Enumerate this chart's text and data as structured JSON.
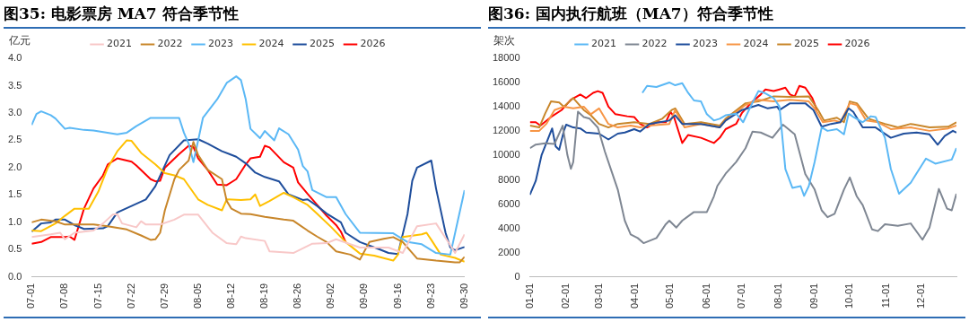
{
  "chart_data": [
    {
      "type": "line",
      "title": "图35: 电影票房 MA7 符合季节性",
      "ylabel": "亿元",
      "legend": "top",
      "xlim": [
        "--07-01",
        "--09-30"
      ],
      "xticks": [
        {
          "value": "--07-01",
          "label": "07-01"
        },
        {
          "value": "--07-08",
          "label": "07-08"
        },
        {
          "value": "--07-15",
          "label": "07-15"
        },
        {
          "value": "--07-22",
          "label": "07-22"
        },
        {
          "value": "--07-29",
          "label": "07-29"
        },
        {
          "value": "--08-05",
          "label": "08-05"
        },
        {
          "value": "--08-12",
          "label": "08-12"
        },
        {
          "value": "--08-19",
          "label": "08-19"
        },
        {
          "value": "--08-26",
          "label": "08-26"
        },
        {
          "value": "--09-02",
          "label": "09-02"
        },
        {
          "value": "--09-09",
          "label": "09-09"
        },
        {
          "value": "--09-16",
          "label": "09-16"
        },
        {
          "value": "--09-23",
          "label": "09-23"
        },
        {
          "value": "--09-30",
          "label": "09-30"
        }
      ],
      "ylim": [
        0,
        4
      ],
      "yticks": [
        {
          "value": 0,
          "label": "0.0"
        },
        0.5,
        {
          "value": 1,
          "label": "1.0"
        },
        1.5,
        {
          "value": 2,
          "label": "2.0"
        },
        2.5,
        {
          "value": 3,
          "label": "3.0"
        },
        3.5,
        {
          "value": 4,
          "label": "4.0"
        }
      ],
      "series": [
        {
          "name": "2021",
          "color": "#f8c8c8",
          "x": [
            "--07-01",
            "--07-05",
            "--07-07",
            "--07-08",
            "--07-10",
            "--07-12",
            "--07-14",
            "--07-16",
            "--07-18",
            "--07-19",
            "--07-20",
            "--07-23",
            "--07-24",
            "--07-25",
            "--07-28",
            "--07-31",
            "--08-02",
            "--08-05",
            "--08-08",
            "--08-11",
            "--08-13",
            "--08-14",
            "--08-15",
            "--08-19",
            "--08-20",
            "--08-25",
            "--08-29",
            "--09-01",
            "--09-03",
            "--09-08",
            "--09-14",
            "--09-17",
            "--09-20",
            "--09-24",
            "--09-27",
            "--09-28",
            "--09-30"
          ],
          "values": [
            0.73,
            0.78,
            0.81,
            0.69,
            0.81,
            0.83,
            0.85,
            0.98,
            1.14,
            1.15,
            0.98,
            0.91,
            1.02,
            0.96,
            0.96,
            1.05,
            1.14,
            1.14,
            0.81,
            0.62,
            0.6,
            0.74,
            0.71,
            0.66,
            0.47,
            0.44,
            0.61,
            0.62,
            0.69,
            0.54,
            0.54,
            0.44,
            0.93,
            0.98,
            0.58,
            0.44,
            0.78
          ]
        },
        {
          "name": "2022",
          "color": "#c8862a",
          "x": [
            "--07-01",
            "--07-03",
            "--07-06",
            "--07-08",
            "--07-11",
            "--07-14",
            "--07-17",
            "--07-21",
            "--07-24",
            "--07-26",
            "--07-27",
            "--07-28",
            "--07-29",
            "--07-31",
            "--08-01",
            "--08-03",
            "--08-04",
            "--08-05",
            "--08-07",
            "--08-10",
            "--08-11",
            "--08-12",
            "--08-14",
            "--08-16",
            "--08-19",
            "--08-23",
            "--08-25",
            "--08-28",
            "--08-30",
            "--09-01",
            "--09-03",
            "--09-06",
            "--09-08",
            "--09-10",
            "--09-13",
            "--09-15",
            "--09-17",
            "--09-20",
            "--09-24",
            "--09-28",
            "--09-29",
            "--09-30"
          ],
          "values": [
            1.0,
            1.05,
            1.02,
            0.96,
            0.96,
            0.96,
            0.93,
            0.87,
            0.76,
            0.68,
            0.69,
            0.81,
            1.22,
            1.79,
            1.96,
            2.13,
            2.47,
            2.23,
            1.96,
            1.79,
            1.39,
            1.25,
            1.16,
            1.15,
            1.1,
            1.05,
            1.03,
            0.85,
            0.74,
            0.64,
            0.47,
            0.41,
            0.32,
            0.64,
            0.7,
            0.73,
            0.64,
            0.34,
            0.3,
            0.27,
            0.27,
            0.37
          ]
        },
        {
          "name": "2023",
          "color": "#5bb8f5",
          "x": [
            "--07-01",
            "--07-02",
            "--07-03",
            "--07-05",
            "--07-06",
            "--07-08",
            "--07-09",
            "--07-12",
            "--07-14",
            "--07-19",
            "--07-21",
            "--07-23",
            "--07-26",
            "--07-29",
            "--08-01",
            "--08-02",
            "--08-03",
            "--08-04",
            "--08-05",
            "--08-06",
            "--08-09",
            "--08-11",
            "--08-13",
            "--08-14",
            "--08-15",
            "--08-16",
            "--08-18",
            "--08-19",
            "--08-21",
            "--08-22",
            "--08-24",
            "--08-26",
            "--08-27",
            "--08-28",
            "--08-29",
            "--09-01",
            "--09-03",
            "--09-05",
            "--09-08",
            "--09-15",
            "--09-18",
            "--09-21",
            "--09-24",
            "--09-27",
            "--09-30"
          ],
          "values": [
            2.78,
            2.98,
            3.03,
            2.96,
            2.9,
            2.71,
            2.73,
            2.69,
            2.68,
            2.61,
            2.64,
            2.76,
            2.91,
            2.91,
            2.91,
            2.64,
            2.44,
            2.1,
            2.5,
            2.91,
            3.25,
            3.55,
            3.67,
            3.6,
            3.25,
            2.71,
            2.54,
            2.67,
            2.5,
            2.72,
            2.61,
            2.33,
            2.03,
            1.93,
            1.59,
            1.46,
            1.46,
            1.15,
            0.81,
            0.8,
            0.64,
            0.6,
            0.44,
            0.41,
            1.59
          ]
        },
        {
          "name": "2024",
          "color": "#ffc000",
          "x": [
            "--07-01",
            "--07-03",
            "--07-06",
            "--07-08",
            "--07-10",
            "--07-13",
            "--07-15",
            "--07-17",
            "--07-19",
            "--07-21",
            "--07-22",
            "--07-24",
            "--07-27",
            "--07-29",
            "--07-31",
            "--08-02",
            "--08-05",
            "--08-07",
            "--08-10",
            "--08-11",
            "--08-14",
            "--08-16",
            "--08-17",
            "--08-18",
            "--08-20",
            "--08-23",
            "--08-25",
            "--08-28",
            "--08-30",
            "--09-02",
            "--09-05",
            "--09-08",
            "--09-11",
            "--09-15",
            "--09-16",
            "--09-17",
            "--09-21",
            "--09-22",
            "--09-23",
            "--09-25",
            "--09-28",
            "--09-30"
          ],
          "values": [
            0.85,
            0.84,
            0.98,
            1.12,
            1.25,
            1.25,
            1.56,
            2.0,
            2.3,
            2.5,
            2.49,
            2.27,
            2.06,
            1.9,
            1.86,
            1.79,
            1.42,
            1.32,
            1.22,
            1.42,
            1.41,
            1.42,
            1.51,
            1.3,
            1.39,
            1.54,
            1.46,
            1.32,
            1.16,
            0.91,
            0.64,
            0.43,
            0.39,
            0.3,
            0.41,
            0.73,
            0.78,
            0.81,
            0.68,
            0.41,
            0.35,
            0.28
          ]
        },
        {
          "name": "2025",
          "color": "#1f4e9c",
          "x": [
            "--07-01",
            "--07-03",
            "--07-05",
            "--07-06",
            "--07-08",
            "--07-10",
            "--07-12",
            "--07-16",
            "--07-17",
            "--07-19",
            "--07-22",
            "--07-25",
            "--07-27",
            "--07-30",
            "--08-02",
            "--08-05",
            "--08-07",
            "--08-10",
            "--08-13",
            "--08-15",
            "--08-17",
            "--08-19",
            "--08-22",
            "--08-24",
            "--08-27",
            "--08-28",
            "--08-30",
            "--09-01",
            "--09-04",
            "--09-05",
            "--09-08",
            "--09-12",
            "--09-14",
            "--09-16",
            "--09-18",
            "--09-19",
            "--09-20",
            "--09-23",
            "--09-24",
            "--09-26",
            "--09-27",
            "--09-28",
            "--09-30"
          ],
          "values": [
            0.83,
            0.98,
            1.0,
            1.05,
            1.05,
            0.95,
            0.88,
            0.89,
            0.93,
            1.18,
            1.3,
            1.42,
            1.66,
            2.23,
            2.5,
            2.52,
            2.44,
            2.3,
            2.2,
            2.08,
            1.91,
            1.83,
            1.75,
            1.51,
            1.41,
            1.42,
            1.3,
            1.16,
            1.0,
            0.81,
            0.64,
            0.51,
            0.44,
            0.42,
            1.15,
            1.76,
            2.0,
            2.13,
            1.62,
            0.81,
            0.54,
            0.49,
            0.55
          ]
        },
        {
          "name": "2026",
          "color": "#ff0000",
          "x": [
            "--07-01",
            "--07-03",
            "--07-05",
            "--07-08",
            "--07-09",
            "--07-10",
            "--07-12",
            "--07-14",
            "--07-16",
            "--07-17",
            "--07-19",
            "--07-22",
            "--07-23",
            "--07-26",
            "--07-27",
            "--07-28",
            "--07-29",
            "--08-01",
            "--08-03",
            "--08-04",
            "--08-05",
            "--08-07",
            "--08-09",
            "--08-11",
            "--08-13",
            "--08-15",
            "--08-16",
            "--08-18",
            "--08-19",
            "--08-20",
            "--08-23",
            "--08-25",
            "--08-26",
            "--08-28",
            "--08-30",
            "--09-01",
            "--09-03",
            "--09-04",
            "--09-05"
          ],
          "values": [
            0.61,
            0.64,
            0.73,
            0.73,
            0.74,
            0.68,
            1.25,
            1.62,
            1.86,
            2.06,
            2.17,
            2.11,
            2.04,
            1.79,
            1.75,
            1.76,
            2.0,
            2.25,
            2.4,
            2.38,
            2.17,
            1.96,
            1.69,
            1.68,
            1.79,
            2.06,
            2.17,
            2.2,
            2.4,
            2.37,
            2.1,
            2.0,
            1.73,
            1.52,
            1.32,
            1.12,
            0.95,
            0.83,
            0.64
          ]
        }
      ]
    },
    {
      "type": "line",
      "title": "图36: 国内执行航班（MA7）符合季节性",
      "ylabel": "架次",
      "legend": "top",
      "xlim": [
        "--01-01",
        "--12-31"
      ],
      "xticks": [
        {
          "value": "--01-01",
          "label": "01-01"
        },
        {
          "value": "--02-01",
          "label": "02-01"
        },
        {
          "value": "--03-01",
          "label": "03-01"
        },
        {
          "value": "--04-01",
          "label": "04-01"
        },
        {
          "value": "--05-01",
          "label": "05-01"
        },
        {
          "value": "--06-01",
          "label": "06-01"
        },
        {
          "value": "--07-01",
          "label": "07-01"
        },
        {
          "value": "--08-01",
          "label": "08-01"
        },
        {
          "value": "--09-01",
          "label": "09-01"
        },
        {
          "value": "--10-01",
          "label": "10-01"
        },
        {
          "value": "--11-01",
          "label": "11-01"
        },
        {
          "value": "--12-01",
          "label": "12-01"
        }
      ],
      "ylim": [
        0,
        18000
      ],
      "yticks": [
        0,
        2000,
        4000,
        6000,
        8000,
        10000,
        12000,
        14000,
        16000,
        18000
      ],
      "series": [
        {
          "name": "2021",
          "color": "#5bb8f5",
          "x": [
            "--04-07",
            "--04-11",
            "--04-19",
            "--04-30",
            "--05-05",
            "--05-11",
            "--05-16",
            "--05-21",
            "--05-27",
            "--06-01",
            "--06-07",
            "--06-12",
            "--06-17",
            "--06-26",
            "--07-02",
            "--07-09",
            "--07-15",
            "--07-20",
            "--07-28",
            "--08-02",
            "--08-07",
            "--08-13",
            "--08-20",
            "--08-23",
            "--08-27",
            "--09-01",
            "--09-07",
            "--09-12",
            "--09-20",
            "--09-26",
            "--09-30",
            "--10-04",
            "--10-12",
            "--10-19",
            "--10-23",
            "--10-31",
            "--11-05",
            "--11-12",
            "--11-22",
            "--12-05",
            "--12-13",
            "--12-27",
            "--12-31"
          ],
          "values": [
            15160,
            15730,
            15640,
            16010,
            15780,
            15950,
            15160,
            14530,
            14450,
            13400,
            12880,
            13030,
            13310,
            13450,
            12740,
            14160,
            15300,
            15160,
            14730,
            14020,
            8900,
            7340,
            7480,
            6680,
            7480,
            9470,
            12310,
            12030,
            12170,
            11740,
            13450,
            13170,
            12740,
            13230,
            13170,
            11460,
            8900,
            6850,
            7760,
            9750,
            9330,
            9670,
            10610
          ]
        },
        {
          "name": "2022",
          "color": "#7f8793",
          "x": [
            "--01-01",
            "--01-06",
            "--01-14",
            "--01-22",
            "--01-29",
            "--02-02",
            "--02-05",
            "--02-07",
            "--02-11",
            "--02-16",
            "--02-21",
            "--02-28",
            "--03-06",
            "--03-12",
            "--03-17",
            "--03-23",
            "--03-28",
            "--04-03",
            "--04-08",
            "--04-19",
            "--04-27",
            "--04-30",
            "--05-06",
            "--05-11",
            "--05-21",
            "--06-01",
            "--06-07",
            "--06-10",
            "--06-17",
            "--06-26",
            "--07-04",
            "--07-10",
            "--07-17",
            "--07-27",
            "--08-05",
            "--08-15",
            "--08-24",
            "--09-01",
            "--09-07",
            "--09-12",
            "--09-18",
            "--09-26",
            "--10-01",
            "--10-07",
            "--10-12",
            "--10-20",
            "--10-25",
            "--10-31",
            "--11-11",
            "--11-22",
            "--12-02",
            "--12-08",
            "--12-16",
            "--12-23",
            "--12-27",
            "--12-31"
          ],
          "values": [
            10600,
            10900,
            11000,
            10950,
            12460,
            10040,
            8900,
            9470,
            13600,
            13170,
            13030,
            12300,
            10320,
            8620,
            7200,
            4640,
            3500,
            3210,
            2790,
            3210,
            4350,
            4640,
            4070,
            4640,
            5350,
            5350,
            6630,
            7500,
            8500,
            9470,
            10600,
            11970,
            11890,
            11460,
            12540,
            11740,
            8480,
            7200,
            5490,
            4920,
            5200,
            7200,
            8190,
            6630,
            5920,
            3920,
            3780,
            4350,
            4210,
            4410,
            3070,
            4070,
            7250,
            5630,
            5490,
            6850
          ]
        },
        {
          "name": "2023",
          "color": "#1f4e9c",
          "x": [
            "--01-01",
            "--01-06",
            "--01-11",
            "--01-20",
            "--01-23",
            "--01-26",
            "--01-30",
            "--02-01",
            "--02-07",
            "--02-13",
            "--02-18",
            "--03-01",
            "--03-09",
            "--03-17",
            "--03-23",
            "--03-31",
            "--04-05",
            "--04-13",
            "--04-30",
            "--05-05",
            "--05-11",
            "--05-27",
            "--06-12",
            "--06-17",
            "--07-01",
            "--07-15",
            "--07-23",
            "--07-31",
            "--08-02",
            "--08-11",
            "--08-24",
            "--08-31",
            "--09-07",
            "--09-15",
            "--09-23",
            "--09-30",
            "--10-04",
            "--10-12",
            "--10-23",
            "--11-05",
            "--11-16",
            "--11-27",
            "--12-08",
            "--12-15",
            "--12-21",
            "--12-28",
            "--12-31"
          ],
          "values": [
            6770,
            7910,
            10040,
            12230,
            10750,
            10470,
            12030,
            12540,
            12310,
            12230,
            11890,
            11800,
            11320,
            11800,
            11890,
            12170,
            11970,
            12600,
            12880,
            13310,
            12600,
            12600,
            12310,
            12880,
            13740,
            14160,
            13880,
            14020,
            13740,
            14300,
            14300,
            13740,
            12370,
            12600,
            12740,
            13880,
            13590,
            12310,
            12310,
            11460,
            11800,
            11890,
            11740,
            10890,
            11600,
            12030,
            11890
          ]
        },
        {
          "name": "2024",
          "color": "#f79646",
          "x": [
            "--01-01",
            "--01-09",
            "--01-15",
            "--01-22",
            "--01-30",
            "--02-07",
            "--02-16",
            "--02-22",
            "--03-01",
            "--03-09",
            "--03-17",
            "--03-28",
            "--04-05",
            "--04-13",
            "--04-30",
            "--05-05",
            "--05-13",
            "--05-27",
            "--06-12",
            "--06-17",
            "--07-04",
            "--07-15",
            "--07-28",
            "--08-11",
            "--08-27",
            "--09-01",
            "--09-08",
            "--09-18",
            "--09-23",
            "--10-01",
            "--10-07",
            "--10-15",
            "--10-25",
            "--11-05",
            "--11-22",
            "--12-08",
            "--12-24",
            "--12-31"
          ],
          "values": [
            12030,
            12030,
            12600,
            13740,
            14020,
            13880,
            14020,
            13400,
            13880,
            12600,
            12310,
            12460,
            12310,
            12460,
            12600,
            13740,
            12310,
            12600,
            12310,
            12880,
            14160,
            14590,
            14450,
            14590,
            14450,
            13880,
            12740,
            12880,
            12740,
            14300,
            14160,
            12880,
            12740,
            12170,
            12310,
            12030,
            12230,
            12460
          ]
        },
        {
          "name": "2025",
          "color": "#c8862a",
          "x": [
            "--01-01",
            "--01-09",
            "--01-14",
            "--01-19",
            "--01-26",
            "--01-30",
            "--02-07",
            "--02-16",
            "--02-22",
            "--03-01",
            "--03-09",
            "--03-17",
            "--03-31",
            "--04-13",
            "--04-24",
            "--05-02",
            "--05-05",
            "--05-13",
            "--05-27",
            "--06-12",
            "--06-17",
            "--07-04",
            "--07-15",
            "--07-28",
            "--08-11",
            "--08-27",
            "--09-04",
            "--09-09",
            "--09-20",
            "--09-26",
            "--10-01",
            "--10-07",
            "--10-17",
            "--10-31",
            "--11-11",
            "--11-22",
            "--12-08",
            "--12-24",
            "--12-31"
          ],
          "values": [
            12460,
            12310,
            13450,
            14450,
            14360,
            14020,
            14730,
            13740,
            13310,
            12600,
            12310,
            12600,
            12740,
            12600,
            13030,
            13740,
            13880,
            12600,
            12740,
            12460,
            13030,
            14300,
            14450,
            14870,
            14820,
            14870,
            13740,
            12880,
            13110,
            12740,
            14450,
            14300,
            13030,
            12600,
            12310,
            12600,
            12310,
            12370,
            12740
          ]
        },
        {
          "name": "2026",
          "color": "#ff0000",
          "x": [
            "--01-01",
            "--01-06",
            "--01-10",
            "--01-19",
            "--01-28",
            "--02-05",
            "--02-13",
            "--02-18",
            "--02-24",
            "--02-28",
            "--03-04",
            "--03-09",
            "--03-15",
            "--03-25",
            "--03-31",
            "--04-05",
            "--04-11",
            "--04-19",
            "--04-27",
            "--05-01",
            "--05-04",
            "--05-11",
            "--05-16",
            "--05-27",
            "--06-07",
            "--06-12",
            "--06-17",
            "--06-26",
            "--07-01",
            "--07-09",
            "--07-17",
            "--07-21",
            "--07-28",
            "--08-02",
            "--08-07",
            "--08-11",
            "--08-15",
            "--08-19",
            "--08-24",
            "--08-30",
            "--09-03"
          ],
          "values": [
            12740,
            12740,
            12460,
            13170,
            13740,
            14590,
            15020,
            14730,
            15160,
            15300,
            15160,
            14020,
            13400,
            13230,
            13170,
            12600,
            12310,
            12740,
            12740,
            13590,
            13170,
            11030,
            11690,
            11460,
            11030,
            11460,
            12170,
            12600,
            13510,
            14360,
            15020,
            15440,
            15300,
            15440,
            15580,
            15020,
            14870,
            15730,
            15580,
            14730,
            13740
          ]
        }
      ]
    }
  ]
}
